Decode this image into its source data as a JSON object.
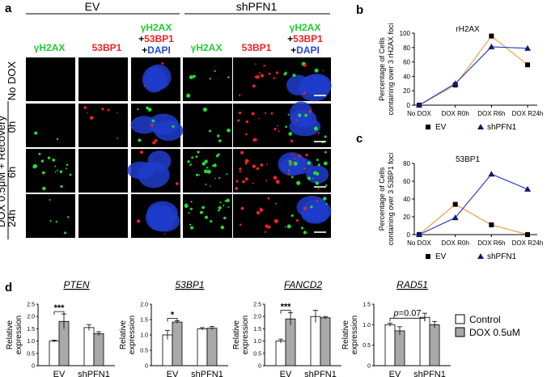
{
  "panel_labels": {
    "a": "a",
    "b": "b",
    "c": "c",
    "d": "d"
  },
  "colors": {
    "green": "#22dd33",
    "red": "#ee2222",
    "blue": "#1f3dcc",
    "orange": "#f0a040",
    "line_blue": "#3040d0",
    "bar_gray": "#a9a9a9"
  },
  "panel_a": {
    "group_ev": "EV",
    "group_shpfn1": "shPFN1",
    "channel_h2ax": "γH2AX",
    "channel_53bp1": "53BP1",
    "merge_line1": "γH2AX",
    "merge_line2_plus": "+",
    "merge_line2_name": "53BP1",
    "merge_line3_plus": "+",
    "merge_line3_name": "DAPI",
    "rows": [
      "No DOX",
      "0h",
      "6h",
      "24h"
    ],
    "side_label": "DOX 0.5μM + Recovery"
  },
  "chart_data": [
    {
      "type": "line",
      "title": "rH2AX",
      "ylabel": "Percentage of Cells containing over 3 rH2AX foci",
      "categories": [
        "No DOX",
        "DOX R0h",
        "DOX R6h",
        "DOX R24h"
      ],
      "ylim": [
        0,
        100
      ],
      "yticks": [
        "0",
        "20",
        "40",
        "60",
        "80",
        "100"
      ],
      "series": [
        {
          "name": "EV",
          "marker": "square",
          "values": [
            0,
            28,
            96,
            56
          ]
        },
        {
          "name": "shPFN1",
          "marker": "triangle",
          "values": [
            0,
            30,
            81,
            79
          ]
        }
      ]
    },
    {
      "type": "line",
      "title": "53BP1",
      "ylabel": "Percentage of Cells containing over 3 53BP1 foci",
      "categories": [
        "No DOX",
        "DOX R0h",
        "DOX R6h",
        "DOX R24h"
      ],
      "ylim": [
        0,
        80
      ],
      "yticks": [
        "0",
        "20",
        "40",
        "60",
        "80"
      ],
      "series": [
        {
          "name": "EV",
          "marker": "square",
          "values": [
            0,
            34,
            11,
            0
          ]
        },
        {
          "name": "shPFN1",
          "marker": "triangle",
          "values": [
            0,
            19,
            68,
            51
          ]
        }
      ]
    },
    {
      "type": "bar",
      "title": "PTEN",
      "ylabel": "Relative expression",
      "categories": [
        "EV",
        "shPFN1"
      ],
      "ylim": [
        0,
        2.5
      ],
      "yticks": [
        "0",
        "0.5",
        "1.0",
        "1.5",
        "2.0",
        "2.5"
      ],
      "series": [
        {
          "name": "Control",
          "values": [
            1.0,
            1.55
          ],
          "errors": [
            0.04,
            0.12
          ]
        },
        {
          "name": "DOX 0.5uM",
          "values": [
            1.8,
            1.3
          ],
          "errors": [
            0.3,
            0.08
          ]
        }
      ],
      "significance": "***"
    },
    {
      "type": "bar",
      "title": "53BP1",
      "ylabel": "Relative expression",
      "categories": [
        "EV",
        "shPFN1"
      ],
      "ylim": [
        0,
        2.0
      ],
      "yticks": [
        "0",
        "0.5",
        "1.0",
        "1.5",
        "2.0"
      ],
      "series": [
        {
          "name": "Control",
          "values": [
            1.0,
            1.2
          ],
          "errors": [
            0.15,
            0.04
          ]
        },
        {
          "name": "DOX 0.5uM",
          "values": [
            1.42,
            1.22
          ],
          "errors": [
            0.04,
            0.06
          ]
        }
      ],
      "significance": "*"
    },
    {
      "type": "bar",
      "title": "FANCD2",
      "ylabel": "Relative expression",
      "categories": [
        "EV",
        "shPFN1"
      ],
      "ylim": [
        0,
        2.5
      ],
      "yticks": [
        "0",
        "0.5",
        "1.0",
        "1.5",
        "2.0",
        "2.5"
      ],
      "series": [
        {
          "name": "Control",
          "values": [
            1.0,
            2.0
          ],
          "errors": [
            0.08,
            0.25
          ]
        },
        {
          "name": "DOX 0.5uM",
          "values": [
            1.9,
            1.95
          ],
          "errors": [
            0.25,
            0.05
          ]
        }
      ],
      "significance": "***"
    },
    {
      "type": "bar",
      "title": "RAD51",
      "ylabel": "Relative expression",
      "categories": [
        "EV",
        "shPFN1"
      ],
      "ylim": [
        0,
        1.5
      ],
      "yticks": [
        "0",
        "0.5",
        "1.0",
        "1.5"
      ],
      "series": [
        {
          "name": "Control",
          "values": [
            1.0,
            1.18
          ],
          "errors": [
            0.04,
            0.1
          ]
        },
        {
          "name": "DOX 0.5uM",
          "values": [
            0.85,
            1.0
          ],
          "errors": [
            0.1,
            0.08
          ]
        }
      ],
      "significance": "p=0.07"
    }
  ],
  "legend_d": [
    "Control",
    "DOX 0.5uM"
  ]
}
